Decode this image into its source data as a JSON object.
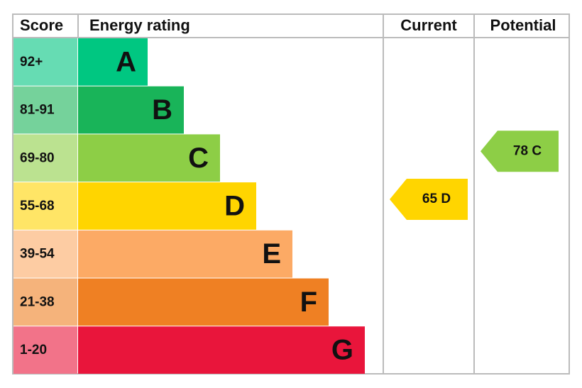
{
  "header": {
    "score": "Score",
    "rating": "Energy rating",
    "current": "Current",
    "potential": "Potential"
  },
  "rows": [
    {
      "score": "92+",
      "letter": "A",
      "color": "#00c781",
      "light": "#66dcb3"
    },
    {
      "score": "81-91",
      "letter": "B",
      "color": "#19b459",
      "light": "#75d29b"
    },
    {
      "score": "69-80",
      "letter": "C",
      "color": "#8dce46",
      "light": "#bbe290"
    },
    {
      "score": "55-68",
      "letter": "D",
      "color": "#ffd500",
      "light": "#ffe566"
    },
    {
      "score": "39-54",
      "letter": "E",
      "color": "#fcaa65",
      "light": "#fdcca3"
    },
    {
      "score": "21-38",
      "letter": "F",
      "color": "#ef8023",
      "light": "#f5b37b"
    },
    {
      "score": "1-20",
      "letter": "G",
      "color": "#e9153b",
      "light": "#f27389"
    }
  ],
  "current": "65 D",
  "potential": "78 C"
}
